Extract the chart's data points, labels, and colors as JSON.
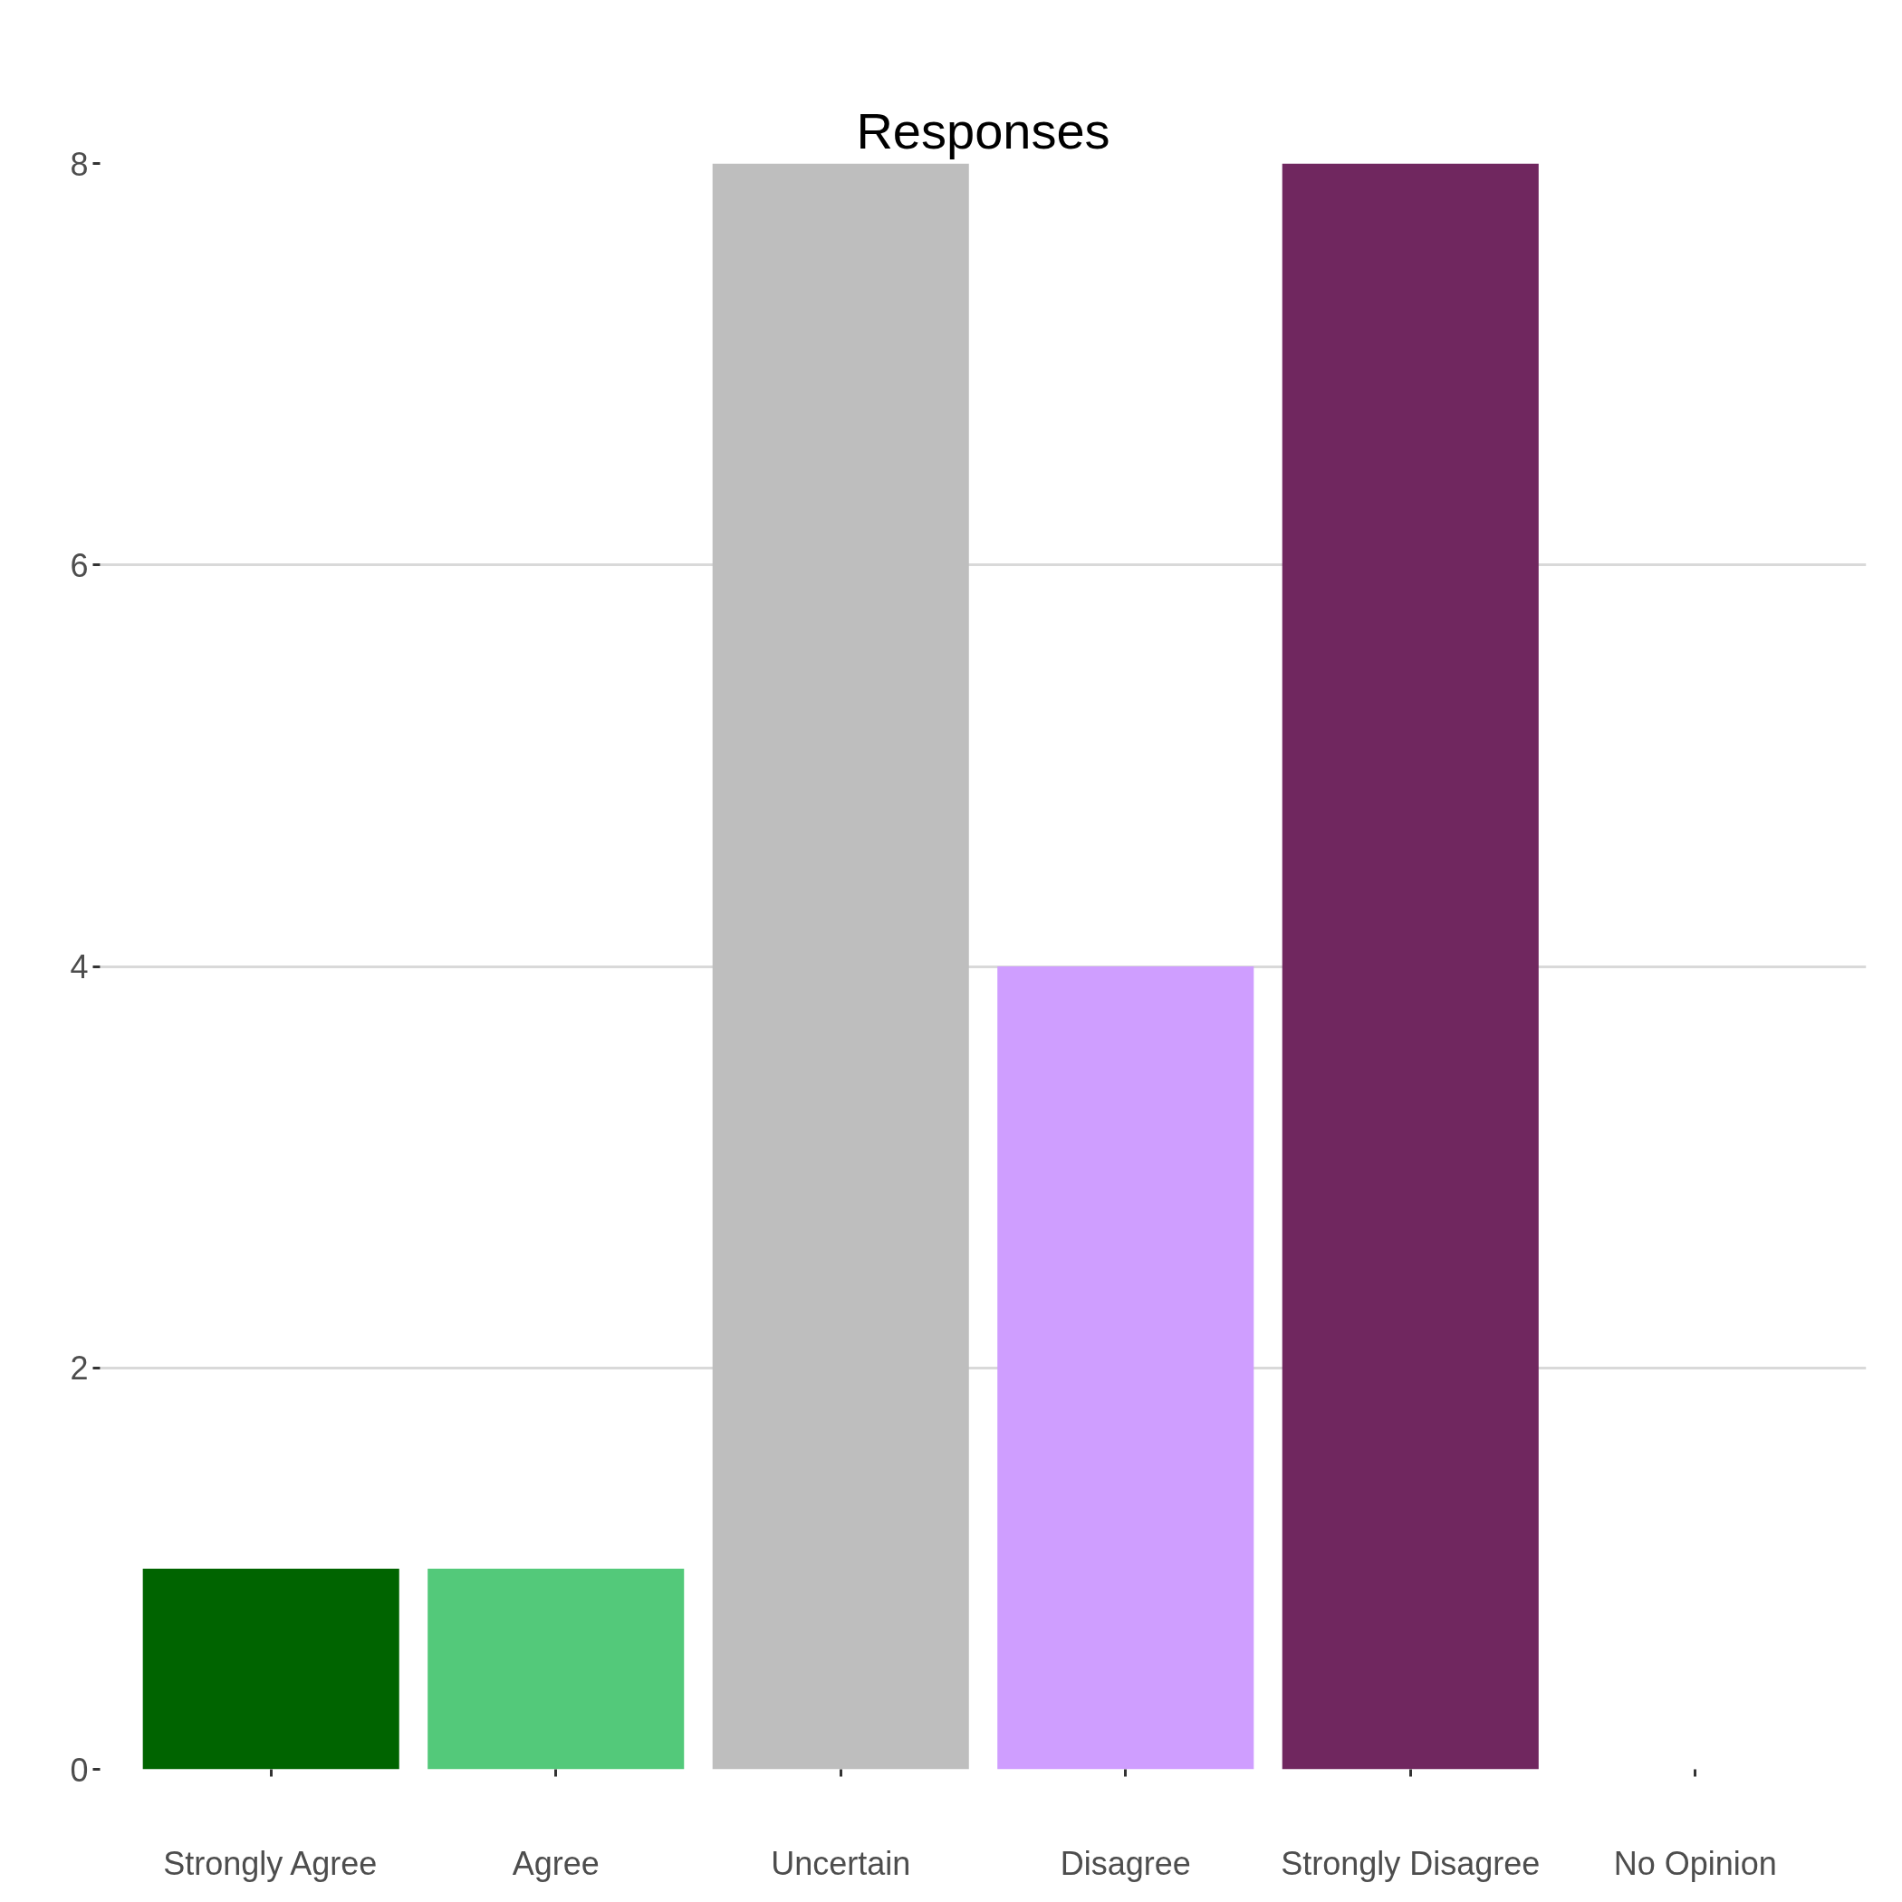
{
  "chart_data": {
    "type": "bar",
    "title": "Responses",
    "categories": [
      "Strongly Agree",
      "Agree",
      "Uncertain",
      "Disagree",
      "Strongly Disagree",
      "No Opinion"
    ],
    "values": [
      1,
      1,
      8,
      4,
      8,
      0
    ],
    "colors": [
      "#006400",
      "#53c97a",
      "#bebebe",
      "#cf9eff",
      "#70275f",
      null
    ],
    "ylim": [
      0,
      8
    ],
    "yticks": [
      0,
      2,
      4,
      6,
      8
    ],
    "grid": "y"
  }
}
